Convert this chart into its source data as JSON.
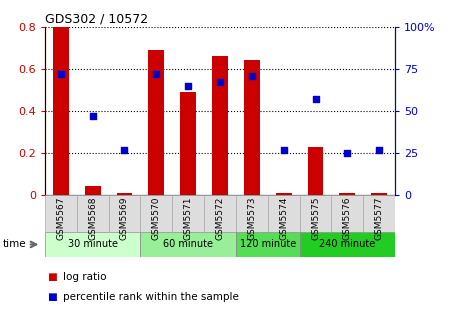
{
  "title": "GDS302 / 10572",
  "categories": [
    "GSM5567",
    "GSM5568",
    "GSM5569",
    "GSM5570",
    "GSM5571",
    "GSM5572",
    "GSM5573",
    "GSM5574",
    "GSM5575",
    "GSM5576",
    "GSM5577"
  ],
  "log_ratio": [
    0.8,
    0.04,
    0.01,
    0.69,
    0.49,
    0.66,
    0.64,
    0.01,
    0.23,
    0.01,
    0.01
  ],
  "percentile_rank": [
    72,
    47,
    27,
    72,
    65,
    67,
    71,
    27,
    57,
    25,
    27
  ],
  "bar_color": "#cc0000",
  "dot_color": "#0000cc",
  "ylim_left": [
    0,
    0.8
  ],
  "ylim_right": [
    0,
    100
  ],
  "yticks_left": [
    0,
    0.2,
    0.4,
    0.6,
    0.8
  ],
  "ytick_labels_left": [
    "0",
    "0.2",
    "0.4",
    "0.6",
    "0.8"
  ],
  "yticks_right": [
    0,
    25,
    50,
    75,
    100
  ],
  "ytick_labels_right": [
    "0",
    "25",
    "50",
    "75",
    "100%"
  ],
  "groups": [
    {
      "label": "30 minute",
      "indices": [
        0,
        1,
        2
      ],
      "color": "#ccffcc"
    },
    {
      "label": "60 minute",
      "indices": [
        3,
        4,
        5
      ],
      "color": "#99ee99"
    },
    {
      "label": "120 minute",
      "indices": [
        6,
        7
      ],
      "color": "#55dd55"
    },
    {
      "label": "240 minute",
      "indices": [
        8,
        9,
        10
      ],
      "color": "#22cc22"
    }
  ],
  "time_label": "time",
  "legend_bar_label": "log ratio",
  "legend_dot_label": "percentile rank within the sample",
  "bg_color": "#ffffff",
  "tick_label_color_left": "#cc0000",
  "tick_label_color_right": "#0000cc",
  "xtick_bg_color": "#dddddd",
  "figsize": [
    4.49,
    3.36
  ],
  "dpi": 100
}
